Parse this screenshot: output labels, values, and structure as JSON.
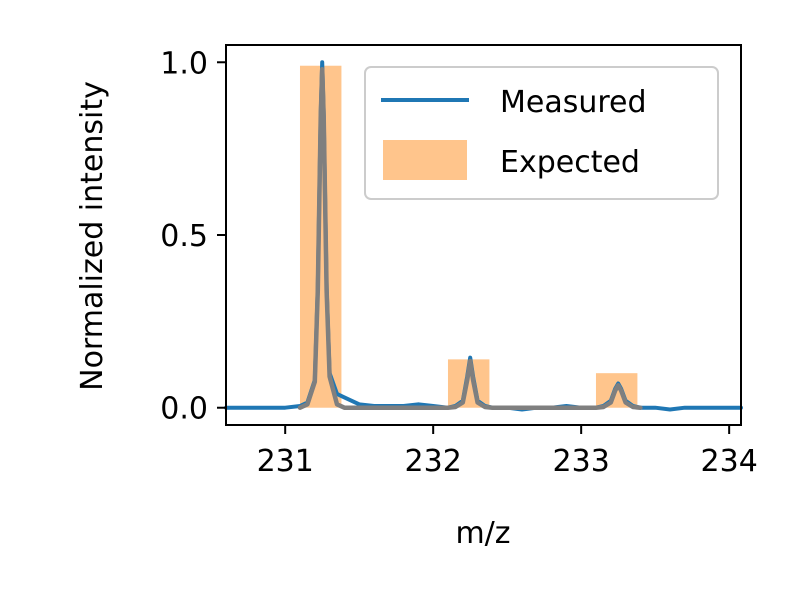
{
  "chart_data": {
    "type": "line",
    "title": "",
    "xlabel": "m/z",
    "ylabel": "Normalized intensity",
    "xlim": [
      230.6,
      234.08
    ],
    "ylim": [
      -0.05,
      1.05
    ],
    "x_ticks": [
      231,
      232,
      233,
      234
    ],
    "x_tick_labels": [
      "231",
      "232",
      "233",
      "234"
    ],
    "y_ticks": [
      0.0,
      0.5,
      1.0
    ],
    "y_tick_labels": [
      "0.0",
      "0.5",
      "1.0"
    ],
    "grid": false,
    "legend_position": "top-right",
    "series": [
      {
        "name": "Measured",
        "kind": "line",
        "color": "#1f77b4",
        "x": [
          230.6,
          230.8,
          231.0,
          231.1,
          231.15,
          231.2,
          231.22,
          231.24,
          231.25,
          231.26,
          231.28,
          231.3,
          231.35,
          231.4,
          231.5,
          231.6,
          231.7,
          231.8,
          231.9,
          232.0,
          232.1,
          232.15,
          232.2,
          232.23,
          232.25,
          232.27,
          232.3,
          232.35,
          232.4,
          232.5,
          232.6,
          232.7,
          232.8,
          232.9,
          233.0,
          233.1,
          233.15,
          233.2,
          233.23,
          233.25,
          233.27,
          233.3,
          233.35,
          233.4,
          233.5,
          233.6,
          233.7,
          233.8,
          233.9,
          234.0,
          234.08
        ],
        "y": [
          0.0,
          0.0,
          0.0,
          0.005,
          0.015,
          0.08,
          0.35,
          0.85,
          1.0,
          0.85,
          0.35,
          0.1,
          0.04,
          0.03,
          0.01,
          0.005,
          0.005,
          0.005,
          0.01,
          0.005,
          0.0,
          0.005,
          0.02,
          0.09,
          0.145,
          0.09,
          0.02,
          0.005,
          0.0,
          0.0,
          -0.005,
          0.0,
          0.0,
          0.005,
          0.0,
          0.0,
          0.005,
          0.02,
          0.055,
          0.07,
          0.055,
          0.02,
          0.005,
          0.0,
          0.0,
          -0.005,
          0.0,
          0.0,
          0.0,
          0.0,
          0.0
        ]
      },
      {
        "name": "",
        "kind": "line",
        "color": "#7f7f7f",
        "x": [
          231.1,
          231.15,
          231.2,
          231.22,
          231.24,
          231.25,
          231.26,
          231.28,
          231.3,
          231.35,
          231.4,
          232.1,
          232.15,
          232.2,
          232.23,
          232.25,
          232.27,
          232.3,
          232.35,
          232.4,
          233.1,
          233.15,
          233.2,
          233.23,
          233.25,
          233.27,
          233.3,
          233.35,
          233.4
        ],
        "y": [
          0.0,
          0.01,
          0.075,
          0.34,
          0.84,
          0.98,
          0.84,
          0.34,
          0.09,
          0.01,
          0.0,
          0.0,
          0.002,
          0.015,
          0.08,
          0.135,
          0.08,
          0.015,
          0.002,
          0.0,
          0.0,
          0.002,
          0.015,
          0.05,
          0.065,
          0.05,
          0.015,
          0.002,
          0.0
        ]
      },
      {
        "name": "Expected",
        "kind": "bar",
        "color": "#ffbb78",
        "bars": [
          {
            "x0": 231.1,
            "x1": 231.38,
            "height": 0.99
          },
          {
            "x0": 232.1,
            "x1": 232.38,
            "height": 0.14
          },
          {
            "x0": 233.1,
            "x1": 233.38,
            "height": 0.1
          }
        ]
      }
    ]
  }
}
